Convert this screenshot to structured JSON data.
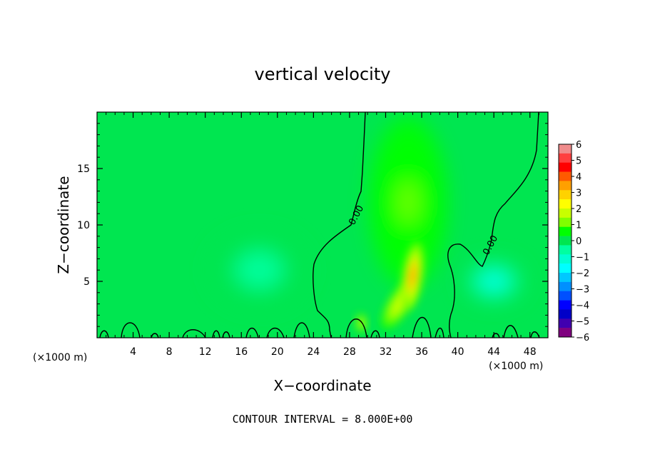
{
  "chart_data": {
    "type": "heatmap",
    "title": "vertical velocity",
    "xlabel": "X−coordinate",
    "ylabel": "Z−coordinate",
    "x_unit_left": "(×1000 m)",
    "x_unit_right": "(×1000 m)",
    "footer": "CONTOUR INTERVAL = 8.000E+00",
    "xlim": [
      0,
      50
    ],
    "ylim": [
      0,
      20
    ],
    "x_ticks": [
      4,
      8,
      12,
      16,
      20,
      24,
      28,
      32,
      36,
      40,
      44,
      48
    ],
    "y_ticks": [
      5,
      10,
      15
    ],
    "contour_labels": [
      "0.00",
      "0.00"
    ],
    "colorbar": {
      "labels": [
        "6",
        "5",
        "4",
        "3",
        "2",
        "1",
        "0",
        "−1",
        "−2",
        "−3",
        "−4",
        "−5",
        "−6"
      ],
      "range": [
        -6,
        6
      ],
      "colors": [
        "#f08c8c",
        "#ff4040",
        "#ff0000",
        "#ff5a00",
        "#ffa000",
        "#ffd200",
        "#ffff00",
        "#c8ff00",
        "#80ff00",
        "#00ff00",
        "#00e650",
        "#00ffa0",
        "#00ffd2",
        "#00ffff",
        "#00c8ff",
        "#0090ff",
        "#0050ff",
        "#0000ff",
        "#0000c8",
        "#4000b0",
        "#800080"
      ]
    },
    "background_value": 0.3,
    "features": [
      {
        "name": "updraft-core",
        "x": 35,
        "z": 5.5,
        "peak": 3.5
      },
      {
        "name": "updraft-plume",
        "x": 33.5,
        "z": 3,
        "peak": 2
      },
      {
        "name": "updraft-column",
        "x": 34.5,
        "z": 12,
        "peak": 1
      },
      {
        "name": "updraft-secondary",
        "x": 29.3,
        "z": 1.3,
        "peak": 2.2
      },
      {
        "name": "downdraft-right",
        "x": 44,
        "z": 5,
        "peak": -1.5
      },
      {
        "name": "downdraft-left",
        "x": 18,
        "z": 6,
        "peak": -0.8
      }
    ]
  }
}
